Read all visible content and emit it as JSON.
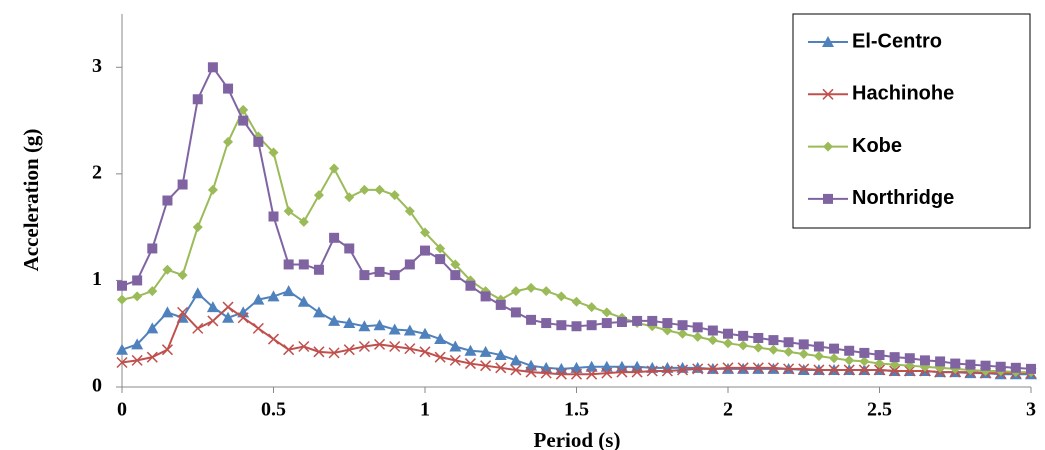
{
  "chart_data": {
    "type": "line",
    "x_label": "Period (s)",
    "y_label": "Acceleration (g)",
    "x": [
      0,
      0.05,
      0.1,
      0.15,
      0.2,
      0.25,
      0.3,
      0.35,
      0.4,
      0.45,
      0.5,
      0.55,
      0.6,
      0.65,
      0.7,
      0.75,
      0.8,
      0.85,
      0.9,
      0.95,
      1,
      1.05,
      1.1,
      1.15,
      1.2,
      1.25,
      1.3,
      1.35,
      1.4,
      1.45,
      1.5,
      1.55,
      1.6,
      1.65,
      1.7,
      1.75,
      1.8,
      1.85,
      1.9,
      1.95,
      2,
      2.05,
      2.1,
      2.15,
      2.2,
      2.25,
      2.3,
      2.35,
      2.4,
      2.45,
      2.5,
      2.55,
      2.6,
      2.65,
      2.7,
      2.75,
      2.8,
      2.85,
      2.9,
      2.95,
      3
    ],
    "series": [
      {
        "name": "El-Centro",
        "color": "#4f81bd",
        "marker": "triangle",
        "values": [
          0.35,
          0.4,
          0.55,
          0.7,
          0.65,
          0.88,
          0.75,
          0.65,
          0.7,
          0.82,
          0.85,
          0.9,
          0.8,
          0.7,
          0.62,
          0.6,
          0.57,
          0.58,
          0.54,
          0.53,
          0.5,
          0.45,
          0.38,
          0.34,
          0.33,
          0.3,
          0.25,
          0.2,
          0.18,
          0.17,
          0.18,
          0.19,
          0.19,
          0.19,
          0.19,
          0.18,
          0.18,
          0.18,
          0.18,
          0.17,
          0.17,
          0.17,
          0.17,
          0.17,
          0.17,
          0.16,
          0.16,
          0.16,
          0.16,
          0.16,
          0.16,
          0.15,
          0.15,
          0.15,
          0.14,
          0.14,
          0.13,
          0.13,
          0.12,
          0.12,
          0.12
        ]
      },
      {
        "name": "Hachinohe",
        "color": "#c0504d",
        "marker": "cross",
        "values": [
          0.23,
          0.25,
          0.28,
          0.35,
          0.7,
          0.55,
          0.62,
          0.75,
          0.65,
          0.55,
          0.45,
          0.35,
          0.38,
          0.33,
          0.32,
          0.35,
          0.38,
          0.4,
          0.38,
          0.36,
          0.33,
          0.28,
          0.25,
          0.22,
          0.2,
          0.18,
          0.16,
          0.14,
          0.13,
          0.12,
          0.12,
          0.12,
          0.13,
          0.14,
          0.14,
          0.15,
          0.15,
          0.16,
          0.17,
          0.17,
          0.18,
          0.18,
          0.18,
          0.18,
          0.17,
          0.17,
          0.16,
          0.16,
          0.16,
          0.16,
          0.16,
          0.15,
          0.15,
          0.15,
          0.14,
          0.14,
          0.14,
          0.13,
          0.13,
          0.13,
          0.13
        ]
      },
      {
        "name": "Kobe",
        "color": "#9bbb59",
        "marker": "diamond",
        "values": [
          0.82,
          0.85,
          0.9,
          1.1,
          1.05,
          1.5,
          1.85,
          2.3,
          2.6,
          2.35,
          2.2,
          1.65,
          1.55,
          1.8,
          2.05,
          1.78,
          1.85,
          1.85,
          1.8,
          1.65,
          1.45,
          1.3,
          1.15,
          1.0,
          0.9,
          0.82,
          0.9,
          0.93,
          0.9,
          0.85,
          0.8,
          0.75,
          0.7,
          0.65,
          0.6,
          0.57,
          0.53,
          0.5,
          0.47,
          0.44,
          0.41,
          0.39,
          0.37,
          0.35,
          0.33,
          0.31,
          0.29,
          0.27,
          0.25,
          0.24,
          0.22,
          0.21,
          0.2,
          0.19,
          0.18,
          0.17,
          0.16,
          0.15,
          0.15,
          0.14,
          0.14
        ]
      },
      {
        "name": "Northridge",
        "color": "#8064a2",
        "marker": "square",
        "values": [
          0.95,
          1.0,
          1.3,
          1.75,
          1.9,
          2.7,
          3.0,
          2.8,
          2.5,
          2.3,
          1.6,
          1.15,
          1.15,
          1.1,
          1.4,
          1.3,
          1.05,
          1.08,
          1.05,
          1.15,
          1.28,
          1.2,
          1.05,
          0.95,
          0.85,
          0.77,
          0.7,
          0.63,
          0.6,
          0.58,
          0.57,
          0.58,
          0.6,
          0.61,
          0.62,
          0.62,
          0.6,
          0.58,
          0.56,
          0.53,
          0.5,
          0.48,
          0.46,
          0.44,
          0.42,
          0.4,
          0.38,
          0.36,
          0.34,
          0.32,
          0.3,
          0.28,
          0.27,
          0.25,
          0.24,
          0.22,
          0.21,
          0.2,
          0.19,
          0.18,
          0.17
        ]
      }
    ],
    "xlim": [
      0,
      3
    ],
    "xticks": [
      0,
      0.5,
      1,
      1.5,
      2,
      2.5,
      3
    ],
    "ylim": [
      0,
      3.5
    ],
    "yticks": [
      0,
      1,
      2,
      3
    ],
    "grid": false,
    "legend": "top-right"
  }
}
